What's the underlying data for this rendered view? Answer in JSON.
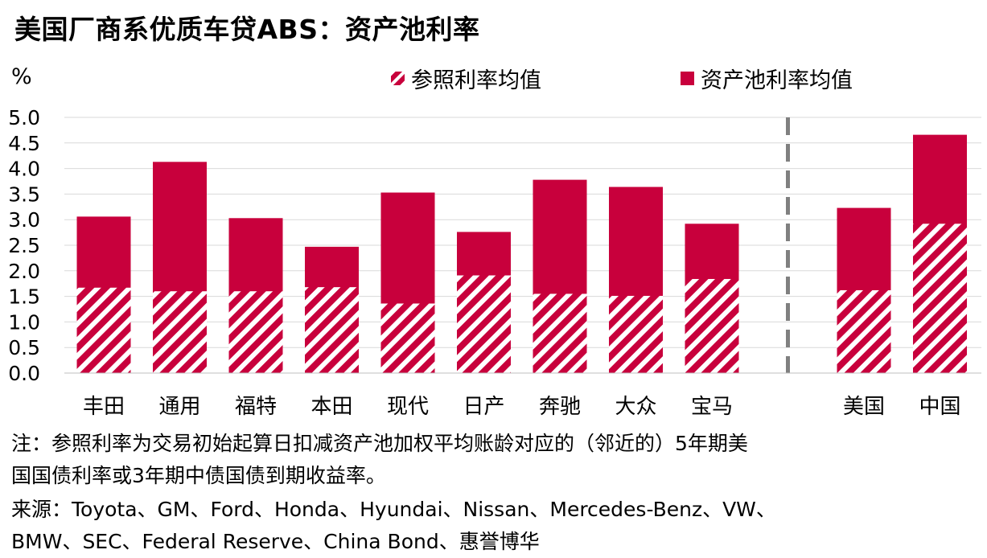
{
  "title": "美国厂商系优质车贷ABS：资产池利率",
  "unit": "%",
  "legend": {
    "reference": "参照利率均值",
    "pool": "资产池利率均值"
  },
  "colors": {
    "bar": "#c8003c",
    "stripe_bg": "#ffffff",
    "divider": "#808080",
    "grid": "#d9d9d9"
  },
  "chart_data": {
    "type": "bar",
    "stacked": false,
    "overlay": true,
    "categories": [
      "丰田",
      "通用",
      "福特",
      "本田",
      "现代",
      "日产",
      "奔驰",
      "大众",
      "宝马",
      "美国",
      "中国"
    ],
    "series": [
      {
        "name": "参照利率均值",
        "values": [
          1.67,
          1.6,
          1.6,
          1.68,
          1.36,
          1.91,
          1.55,
          1.51,
          1.84,
          1.62,
          2.92
        ]
      },
      {
        "name": "资产池利率均值",
        "values": [
          3.06,
          4.13,
          3.03,
          2.47,
          3.53,
          2.76,
          3.78,
          3.64,
          2.92,
          3.23,
          4.66
        ]
      }
    ],
    "xlabel": "",
    "ylabel": "%",
    "ylim": [
      0,
      5
    ],
    "yticks": [
      "0.0",
      "0.5",
      "1.0",
      "1.5",
      "2.0",
      "2.5",
      "3.0",
      "3.5",
      "4.0",
      "4.5",
      "5.0"
    ],
    "grid": true,
    "legend_position": "top",
    "divider_after_category": "宝马"
  },
  "notes": {
    "note_line1": "注：参照利率为交易初始起算日扣减资产池加权平均账龄对应的（邻近的）5年期美",
    "note_line2": "国国债利率或3年期中债国债到期收益率。",
    "source_line1": "来源：Toyota、GM、Ford、Honda、Hyundai、Nissan、Mercedes-Benz、VW、",
    "source_line2": "BMW、SEC、Federal Reserve、China Bond、惠誉博华"
  }
}
